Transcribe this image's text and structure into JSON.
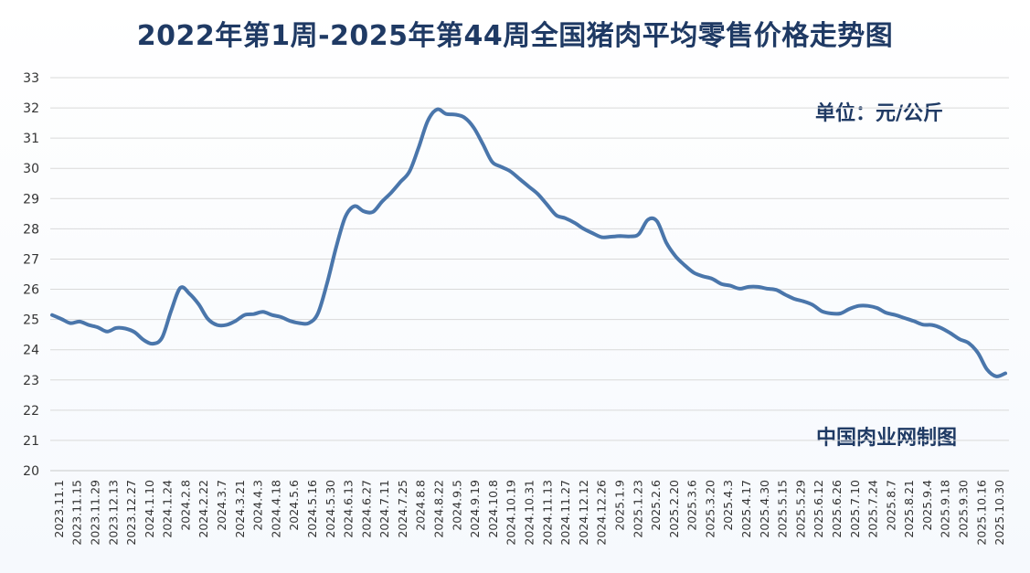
{
  "chart_data": {
    "type": "line",
    "title": "2022年第1周-2025年第44周全国猪肉平均零售价格走势图",
    "unit_label": "单位：元/公斤",
    "source_label": "中国肉业网制图",
    "ylim": [
      20,
      33
    ],
    "y_ticks": [
      20,
      21,
      22,
      23,
      24,
      25,
      26,
      27,
      28,
      29,
      30,
      31,
      32,
      33
    ],
    "grid": true,
    "line_color": "#4a76ab",
    "x_tick_labels": [
      "2023.11.1",
      "2023.11.15",
      "2023.11.29",
      "2023.12.13",
      "2023.12.27",
      "2024.1.10",
      "2024.1.24",
      "2024.2.8",
      "2024.2.22",
      "2024.3.7",
      "2024.3.21",
      "2024.4.3",
      "2024.4.18",
      "2024.5.6",
      "2024.5.16",
      "2024.5.30",
      "2024.6.13",
      "2024.6.27",
      "2024.7.11",
      "2024.7.25",
      "2024.8.8",
      "2024.8.22",
      "2024.9.5",
      "2024.9.19",
      "2024.10.8",
      "2024.10.19",
      "2024.10.31",
      "2024.11.13",
      "2024.11.27",
      "2024.12.12",
      "2024.12.26",
      "2025.1.9",
      "2025.1.23",
      "2025.2.6",
      "2025.2.20",
      "2025.3.6",
      "2025.3.20",
      "2025.4.3",
      "2025.4.17",
      "2025.4.30",
      "2025.5.15",
      "2025.5.29",
      "2025.6.12",
      "2025.6.26",
      "2025.7.10",
      "2025.7.24",
      "2025.8.7",
      "2025.8.21",
      "2025.9.4",
      "2025.9.18",
      "2025.9.30",
      "2025.10.16",
      "2025.10.30"
    ],
    "values": [
      25.15,
      25.02,
      24.88,
      24.93,
      24.82,
      24.74,
      24.6,
      24.72,
      24.7,
      24.58,
      24.32,
      24.2,
      24.4,
      25.3,
      26.05,
      25.85,
      25.5,
      25.02,
      24.82,
      24.82,
      24.95,
      25.15,
      25.18,
      25.25,
      25.15,
      25.08,
      24.95,
      24.88,
      24.88,
      25.2,
      26.2,
      27.4,
      28.4,
      28.75,
      28.58,
      28.56,
      28.9,
      29.2,
      29.55,
      29.9,
      30.7,
      31.58,
      31.95,
      31.8,
      31.78,
      31.68,
      31.35,
      30.8,
      30.22,
      30.05,
      29.9,
      29.65,
      29.4,
      29.15,
      28.8,
      28.45,
      28.35,
      28.2,
      28.0,
      27.85,
      27.72,
      27.74,
      27.76,
      27.75,
      27.82,
      28.3,
      28.25,
      27.55,
      27.1,
      26.8,
      26.55,
      26.43,
      26.35,
      26.18,
      26.12,
      26.02,
      26.08,
      26.08,
      26.02,
      25.98,
      25.82,
      25.68,
      25.6,
      25.48,
      25.27,
      25.2,
      25.2,
      25.35,
      25.45,
      25.45,
      25.38,
      25.22,
      25.15,
      25.05,
      24.95,
      24.83,
      24.82,
      24.72,
      24.55,
      24.35,
      24.22,
      23.9,
      23.35,
      23.12,
      23.22
    ]
  }
}
